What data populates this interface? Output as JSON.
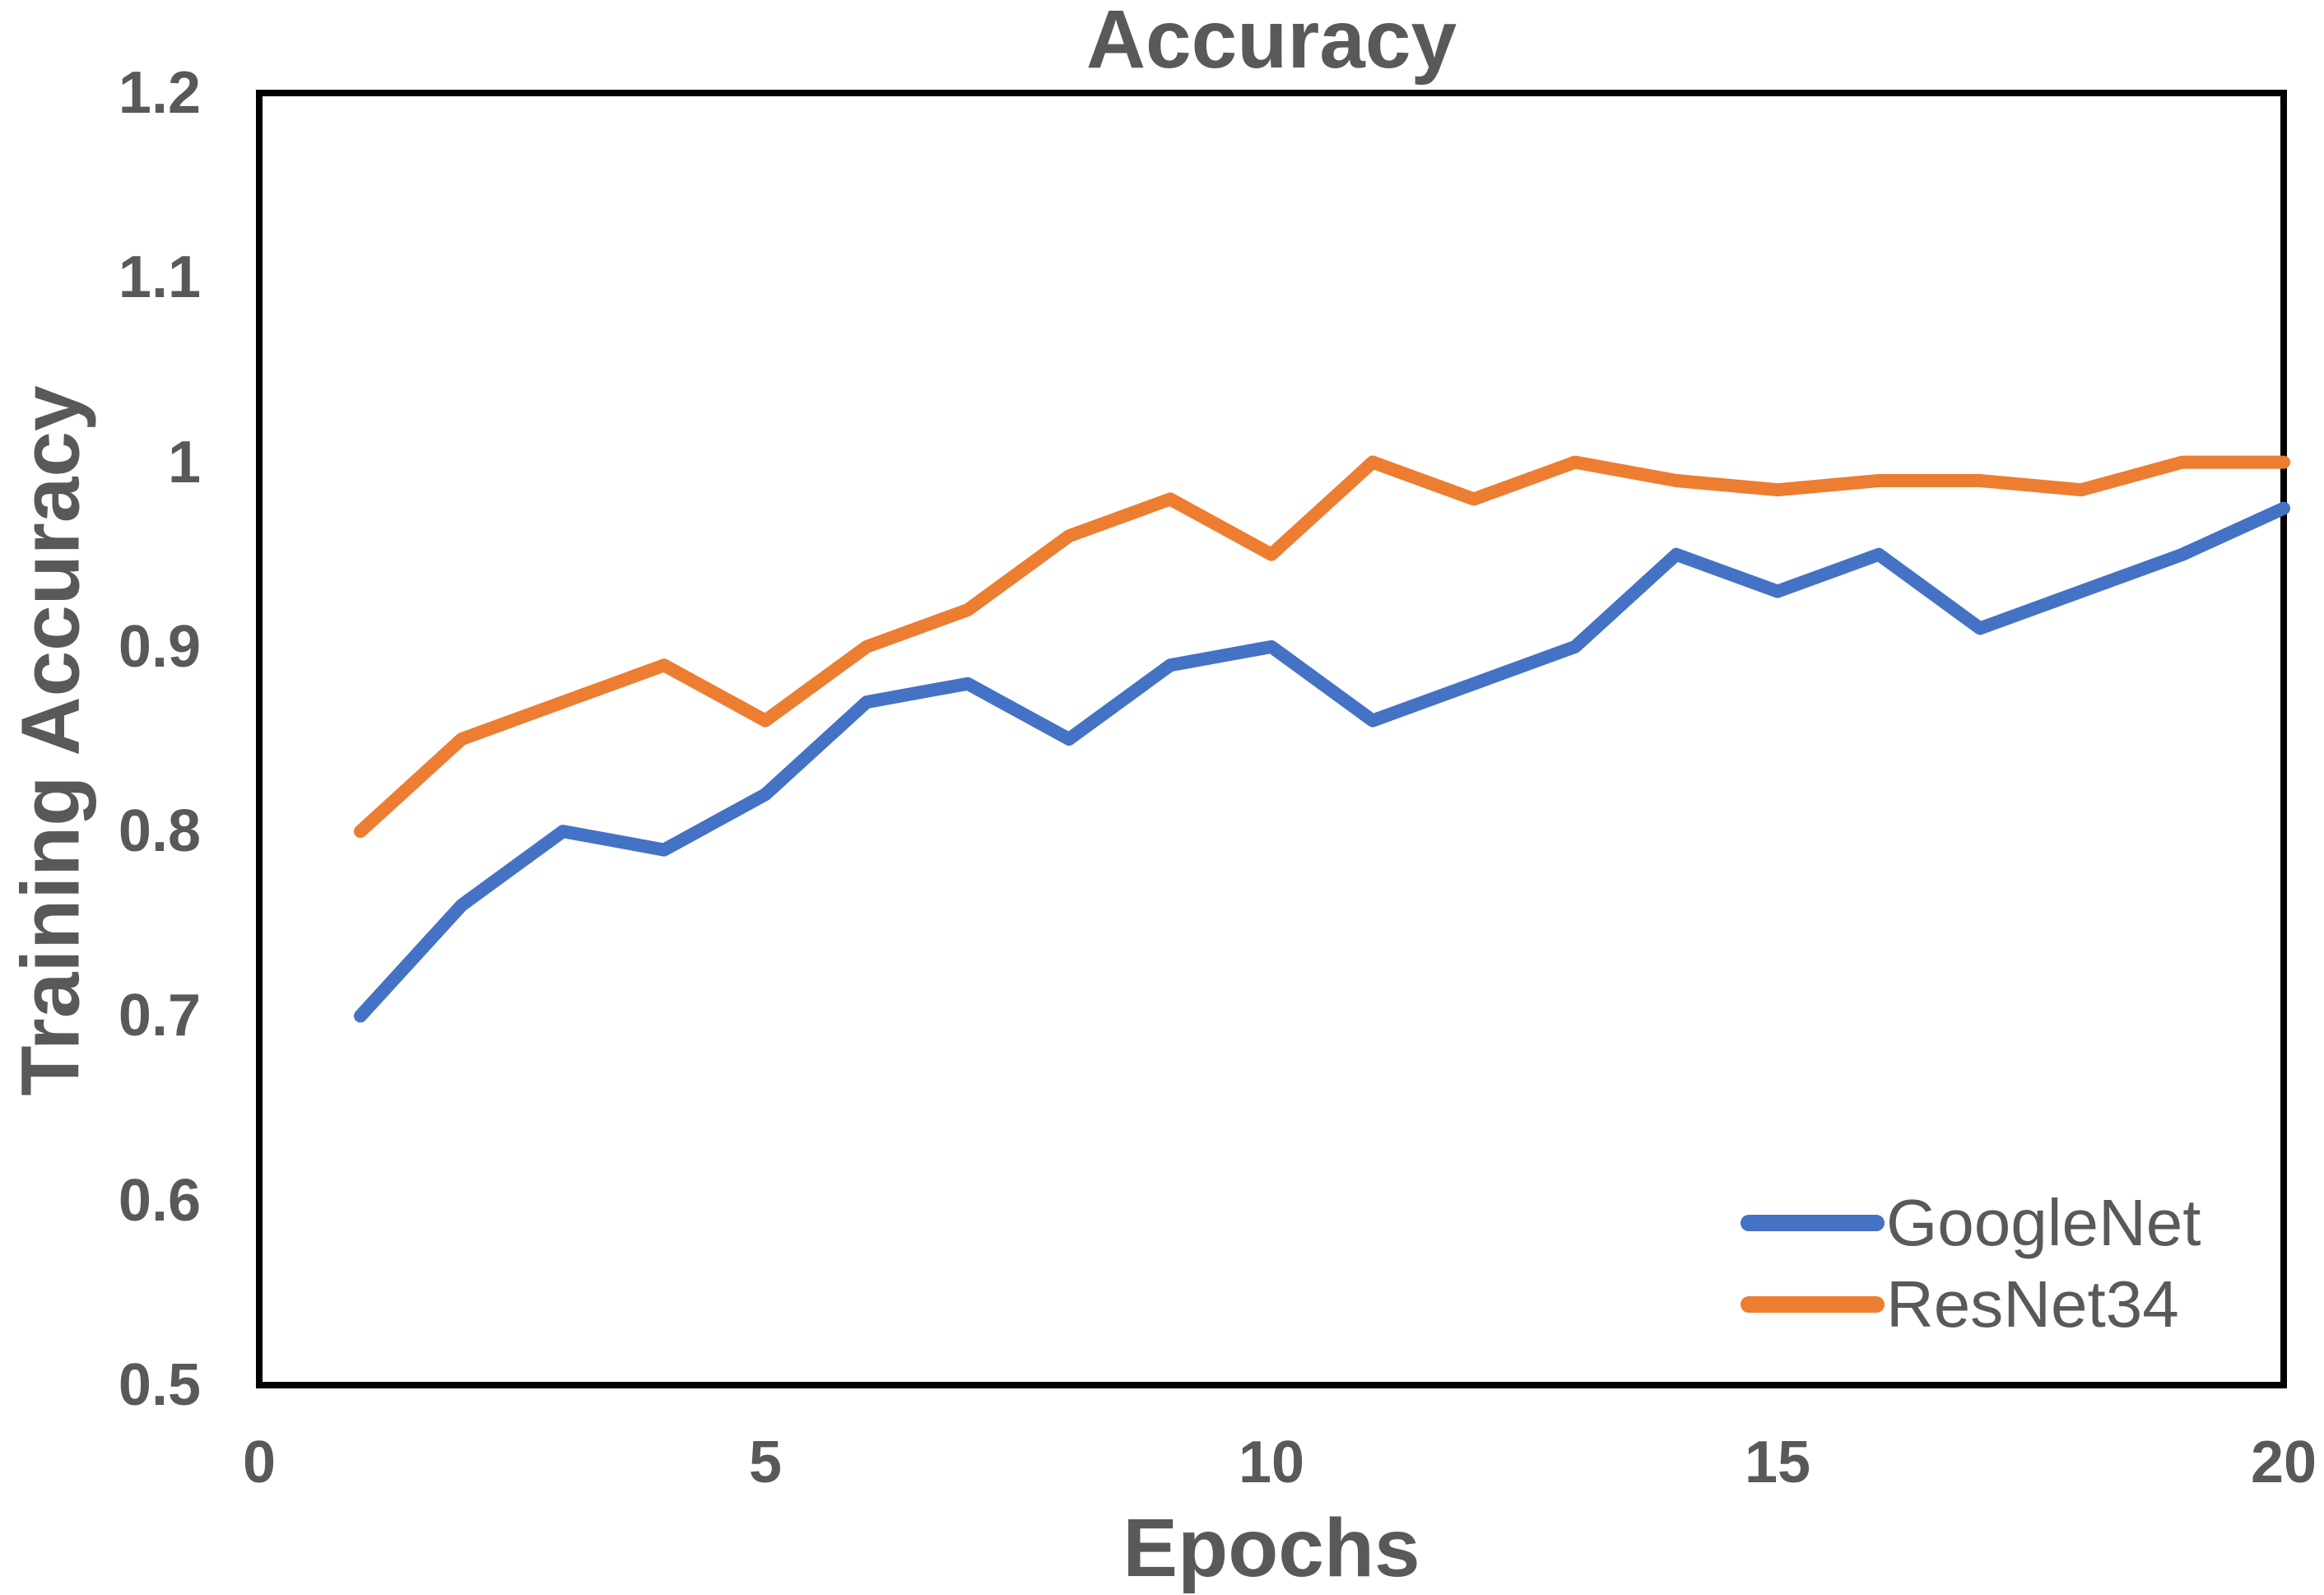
{
  "title": "Accuracy",
  "colors": {
    "googlenet_blue": "#4472C4",
    "resnet34_orange": "#ED7D31",
    "text_gray": "#595959",
    "frame_black": "#000000",
    "background": "#FFFFFF"
  },
  "x_axis": {
    "label": "Epochs",
    "tick_labels": [
      "0",
      "5",
      "10",
      "15",
      "20"
    ],
    "tick_values": [
      0,
      5,
      10,
      15,
      20
    ]
  },
  "y_axis": {
    "label": "Training Accuracy",
    "tick_labels": [
      "1.2",
      "1.1",
      "1",
      "0.9",
      "0.8",
      "0.7",
      "0.6",
      "0.5"
    ],
    "tick_values": [
      1.2,
      1.1,
      1.0,
      0.9,
      0.8,
      0.7,
      0.6,
      0.5
    ]
  },
  "legend": {
    "entries": [
      {
        "label": "GoogleNet",
        "color": "#4472C4"
      },
      {
        "label": "ResNet34",
        "color": "#ED7D31"
      }
    ]
  },
  "chart_data": {
    "type": "line",
    "title": "Accuracy",
    "xlabel": "Epochs",
    "ylabel": "Training Accuracy",
    "xlim": [
      0,
      20
    ],
    "ylim": [
      0.5,
      1.2
    ],
    "x_ticks": [
      0,
      5,
      10,
      15,
      20
    ],
    "y_ticks": [
      0.5,
      0.6,
      0.7,
      0.8,
      0.9,
      1.0,
      1.1,
      1.2
    ],
    "grid": false,
    "legend_position": "inside-lower-right",
    "x": [
      1,
      2,
      3,
      4,
      5,
      6,
      7,
      8,
      9,
      10,
      11,
      12,
      13,
      14,
      15,
      16,
      17,
      18,
      19,
      20
    ],
    "series": [
      {
        "name": "GoogleNet",
        "color": "#4472C4",
        "values": [
          0.7,
          0.76,
          0.8,
          0.79,
          0.82,
          0.87,
          0.88,
          0.85,
          0.89,
          0.9,
          0.86,
          0.88,
          0.9,
          0.95,
          0.93,
          0.95,
          0.91,
          0.93,
          0.95,
          0.975
        ]
      },
      {
        "name": "ResNet34",
        "color": "#ED7D31",
        "values": [
          0.8,
          0.85,
          0.87,
          0.89,
          0.86,
          0.9,
          0.92,
          0.96,
          0.98,
          0.95,
          1.0,
          0.98,
          1.0,
          0.99,
          0.985,
          0.99,
          0.99,
          0.985,
          1.0,
          1.0
        ]
      }
    ]
  }
}
